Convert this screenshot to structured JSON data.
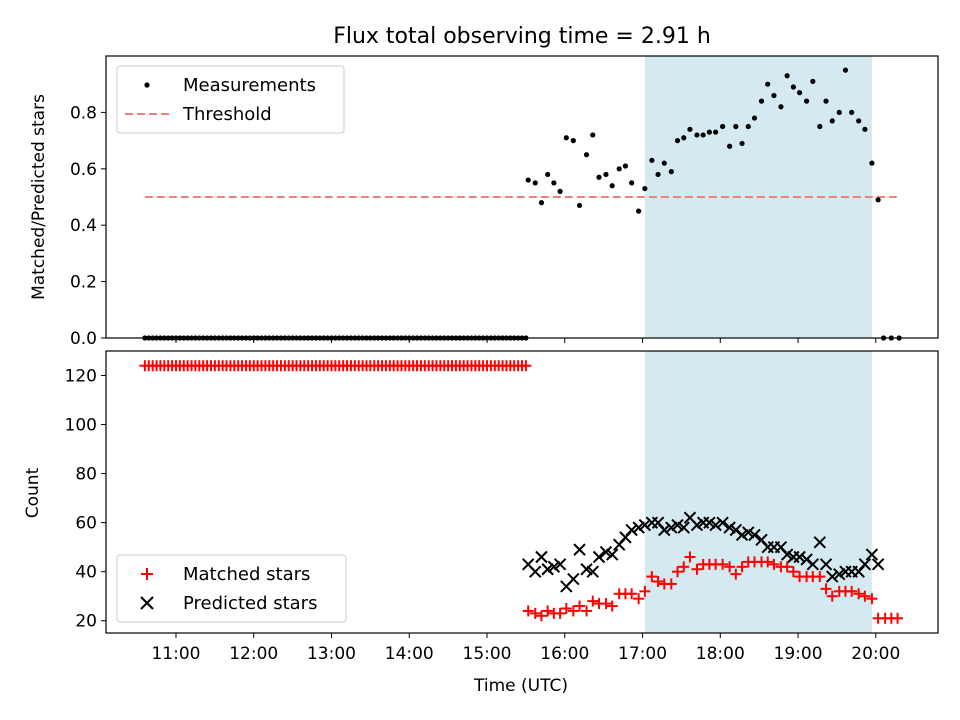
{
  "figure": {
    "title": "Flux total observing time = 2.91 h",
    "observing_window": {
      "start_hour": 17.03,
      "end_hour": 19.95,
      "color": "#d4eaf0"
    }
  },
  "chart_data": [
    {
      "type": "scatter",
      "ylabel": "Matched/Predicted stars",
      "xlim": [
        10.1,
        20.8
      ],
      "ylim": [
        0.0,
        1.0
      ],
      "yticks": [
        0.0,
        0.2,
        0.4,
        0.6,
        0.8
      ],
      "yticklabels": [
        "0.0",
        "0.2",
        "0.4",
        "0.6",
        "0.8"
      ],
      "legend": {
        "position": "upper-left",
        "measurements_label": "Measurements",
        "threshold_label": "Threshold"
      },
      "threshold": {
        "value": 0.5,
        "x_start": 10.6,
        "x_end": 20.3,
        "color": "#f08080"
      },
      "measurements": {
        "zero_block": {
          "start": 10.6,
          "end": 11.0,
          "step": 0.05
        },
        "zero_block2": {
          "start": 10.9,
          "end": 15.5,
          "step": 0.05
        },
        "points": [
          [
            15.53,
            0.56
          ],
          [
            15.62,
            0.55
          ],
          [
            15.7,
            0.48
          ],
          [
            15.78,
            0.58
          ],
          [
            15.86,
            0.55
          ],
          [
            15.94,
            0.52
          ],
          [
            16.02,
            0.71
          ],
          [
            16.11,
            0.7
          ],
          [
            16.19,
            0.47
          ],
          [
            16.28,
            0.65
          ],
          [
            16.36,
            0.72
          ],
          [
            16.44,
            0.57
          ],
          [
            16.53,
            0.58
          ],
          [
            16.61,
            0.54
          ],
          [
            16.7,
            0.6
          ],
          [
            16.78,
            0.61
          ],
          [
            16.86,
            0.55
          ],
          [
            16.95,
            0.45
          ],
          [
            17.03,
            0.53
          ],
          [
            17.12,
            0.63
          ],
          [
            17.2,
            0.58
          ],
          [
            17.28,
            0.62
          ],
          [
            17.37,
            0.59
          ],
          [
            17.45,
            0.7
          ],
          [
            17.53,
            0.71
          ],
          [
            17.61,
            0.74
          ],
          [
            17.7,
            0.72
          ],
          [
            17.78,
            0.72
          ],
          [
            17.86,
            0.73
          ],
          [
            17.94,
            0.73
          ],
          [
            18.03,
            0.75
          ],
          [
            18.12,
            0.68
          ],
          [
            18.2,
            0.75
          ],
          [
            18.28,
            0.69
          ],
          [
            18.36,
            0.75
          ],
          [
            18.44,
            0.78
          ],
          [
            18.53,
            0.84
          ],
          [
            18.61,
            0.9
          ],
          [
            18.69,
            0.86
          ],
          [
            18.78,
            0.82
          ],
          [
            18.86,
            0.93
          ],
          [
            18.94,
            0.89
          ],
          [
            19.02,
            0.87
          ],
          [
            19.11,
            0.84
          ],
          [
            19.19,
            0.91
          ],
          [
            19.28,
            0.75
          ],
          [
            19.36,
            0.84
          ],
          [
            19.44,
            0.77
          ],
          [
            19.53,
            0.8
          ],
          [
            19.61,
            0.95
          ],
          [
            19.69,
            0.8
          ],
          [
            19.78,
            0.77
          ],
          [
            19.86,
            0.74
          ],
          [
            19.95,
            0.62
          ],
          [
            20.03,
            0.49
          ]
        ],
        "tail_zeros": [
          20.1,
          20.2,
          20.3
        ]
      }
    },
    {
      "type": "scatter",
      "xlabel": "Time (UTC)",
      "ylabel": "Count",
      "xlim": [
        10.1,
        20.8
      ],
      "ylim": [
        15,
        130
      ],
      "xticks": [
        11,
        12,
        13,
        14,
        15,
        16,
        17,
        18,
        19,
        20
      ],
      "xticklabels": [
        "11:00",
        "12:00",
        "13:00",
        "14:00",
        "15:00",
        "16:00",
        "17:00",
        "18:00",
        "19:00",
        "20:00"
      ],
      "yticks": [
        20,
        40,
        60,
        80,
        100,
        120
      ],
      "yticklabels": [
        "20",
        "40",
        "60",
        "80",
        "100",
        "120"
      ],
      "legend": {
        "position": "lower-left"
      },
      "series": [
        {
          "name": "Matched stars",
          "marker": "plus",
          "color": "#ff0000",
          "constant_block": {
            "start": 10.6,
            "end": 15.5,
            "step": 0.05,
            "value": 124
          },
          "points": [
            [
              15.53,
              24
            ],
            [
              15.62,
              23
            ],
            [
              15.7,
              22
            ],
            [
              15.78,
              24
            ],
            [
              15.86,
              23
            ],
            [
              15.94,
              23
            ],
            [
              16.02,
              25
            ],
            [
              16.11,
              24
            ],
            [
              16.19,
              26
            ],
            [
              16.28,
              24
            ],
            [
              16.36,
              28
            ],
            [
              16.44,
              27
            ],
            [
              16.53,
              27
            ],
            [
              16.61,
              26
            ],
            [
              16.7,
              31
            ],
            [
              16.78,
              31
            ],
            [
              16.86,
              31
            ],
            [
              16.95,
              29
            ],
            [
              17.03,
              32
            ],
            [
              17.12,
              38
            ],
            [
              17.2,
              36
            ],
            [
              17.28,
              35
            ],
            [
              17.37,
              35
            ],
            [
              17.45,
              40
            ],
            [
              17.53,
              42
            ],
            [
              17.61,
              46
            ],
            [
              17.7,
              41
            ],
            [
              17.78,
              43
            ],
            [
              17.86,
              43
            ],
            [
              17.94,
              43
            ],
            [
              18.03,
              43
            ],
            [
              18.12,
              42
            ],
            [
              18.2,
              39
            ],
            [
              18.28,
              42
            ],
            [
              18.36,
              44
            ],
            [
              18.44,
              44
            ],
            [
              18.53,
              44
            ],
            [
              18.61,
              44
            ],
            [
              18.69,
              43
            ],
            [
              18.78,
              42
            ],
            [
              18.86,
              42
            ],
            [
              18.94,
              40
            ],
            [
              19.02,
              38
            ],
            [
              19.11,
              38
            ],
            [
              19.19,
              38
            ],
            [
              19.28,
              38
            ],
            [
              19.36,
              33
            ],
            [
              19.44,
              30
            ],
            [
              19.53,
              32
            ],
            [
              19.61,
              32
            ],
            [
              19.69,
              32
            ],
            [
              19.78,
              31
            ],
            [
              19.86,
              30
            ],
            [
              19.95,
              29
            ],
            [
              20.03,
              21
            ],
            [
              20.12,
              21
            ],
            [
              20.2,
              21
            ],
            [
              20.28,
              21
            ]
          ]
        },
        {
          "name": "Predicted stars",
          "marker": "x",
          "color": "#000000",
          "points": [
            [
              15.53,
              43
            ],
            [
              15.62,
              40
            ],
            [
              15.7,
              46
            ],
            [
              15.78,
              41
            ],
            [
              15.86,
              42
            ],
            [
              15.94,
              43
            ],
            [
              16.02,
              34
            ],
            [
              16.11,
              37
            ],
            [
              16.19,
              49
            ],
            [
              16.28,
              41
            ],
            [
              16.36,
              40
            ],
            [
              16.44,
              46
            ],
            [
              16.53,
              48
            ],
            [
              16.61,
              47
            ],
            [
              16.7,
              51
            ],
            [
              16.78,
              54
            ],
            [
              16.86,
              57
            ],
            [
              16.95,
              58
            ],
            [
              17.03,
              59
            ],
            [
              17.12,
              60
            ],
            [
              17.2,
              60
            ],
            [
              17.28,
              57
            ],
            [
              17.37,
              58
            ],
            [
              17.45,
              59
            ],
            [
              17.53,
              58
            ],
            [
              17.61,
              62
            ],
            [
              17.7,
              59
            ],
            [
              17.78,
              60
            ],
            [
              17.86,
              60
            ],
            [
              17.94,
              59
            ],
            [
              18.03,
              60
            ],
            [
              18.12,
              58
            ],
            [
              18.2,
              57
            ],
            [
              18.28,
              55
            ],
            [
              18.36,
              56
            ],
            [
              18.44,
              55
            ],
            [
              18.53,
              53
            ],
            [
              18.61,
              50
            ],
            [
              18.69,
              50
            ],
            [
              18.78,
              50
            ],
            [
              18.86,
              47
            ],
            [
              18.94,
              46
            ],
            [
              19.02,
              46
            ],
            [
              19.11,
              45
            ],
            [
              19.19,
              43
            ],
            [
              19.28,
              52
            ],
            [
              19.36,
              43
            ],
            [
              19.44,
              38
            ],
            [
              19.53,
              39
            ],
            [
              19.61,
              40
            ],
            [
              19.69,
              40
            ],
            [
              19.78,
              40
            ],
            [
              19.86,
              43
            ],
            [
              19.95,
              47
            ],
            [
              20.03,
              43
            ]
          ]
        }
      ]
    }
  ]
}
